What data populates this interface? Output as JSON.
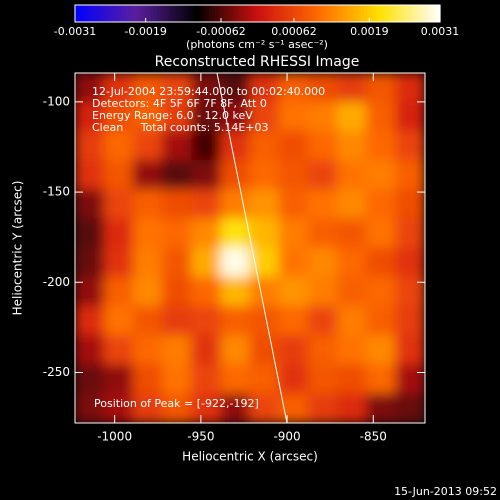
{
  "chart_data": {
    "type": "heatmap",
    "title": "Reconstructed RHESSI Image",
    "x_label": "Heliocentric X (arcsec)",
    "y_label": "Heliocentric Y (arcsec)",
    "xlim": [
      -1023,
      -820
    ],
    "ylim": [
      -278,
      -84
    ],
    "xticks": [
      -1000,
      -950,
      -900,
      -850
    ],
    "yticks": [
      -100,
      -150,
      -200,
      -250
    ],
    "colorbar_label": "(photons cm⁻² s⁻¹ asec⁻²)",
    "zlim": [
      -0.0031,
      0.0031
    ],
    "zticks": [
      -0.0031,
      -0.0019,
      -0.00062,
      0.00062,
      0.0019,
      0.0031
    ],
    "colormap": [
      "#0000ff",
      "#5a1f9e",
      "#000000",
      "#cc1010",
      "#ff6a00",
      "#ffe000",
      "#ffffff"
    ],
    "annotations": [
      "12-Jul-2004 23:59:44.000 to 00:02:40.000",
      "Detectors: 4F 5F 6F 7F 8F, Att 0",
      "Energy Range: 6.0 - 12.0 keV",
      "Clean     Total counts: 5.14E+03"
    ],
    "peak_label": "Position of Peak = [-922,-192]",
    "z": [
      [
        -0.0003,
        0.0004,
        0.0008,
        0.0006,
        -0.0004,
        -0.0006,
        0.0004,
        0.0009,
        0.0007,
        0.0005,
        0.0008,
        0.0003
      ],
      [
        0.0002,
        0.0007,
        0.0009,
        0.0005,
        -0.0005,
        -0.0003,
        0.0006,
        0.0011,
        0.0012,
        0.0016,
        0.0009,
        0.0002
      ],
      [
        0.0005,
        0.001,
        0.0006,
        -0.0002,
        -0.0007,
        0.0004,
        0.0009,
        0.0007,
        0.001,
        0.0013,
        0.001,
        0.0006
      ],
      [
        0.0004,
        0.0008,
        -0.0003,
        -0.0006,
        -0.0004,
        0.0007,
        0.001,
        0.0008,
        0.0006,
        0.0011,
        0.0012,
        0.0009
      ],
      [
        -0.0004,
        0.0006,
        0.0009,
        0.0007,
        0.0006,
        0.0012,
        0.0014,
        0.0009,
        0.0011,
        0.0013,
        0.001,
        0.0007
      ],
      [
        -0.0006,
        0.0003,
        0.0011,
        0.001,
        0.0013,
        0.0021,
        0.0017,
        0.0012,
        0.0009,
        0.0008,
        0.0011,
        0.0006
      ],
      [
        -0.0005,
        0.0004,
        0.0012,
        0.0008,
        0.0016,
        0.003,
        0.0019,
        0.0011,
        0.0013,
        0.001,
        0.0007,
        0.0004
      ],
      [
        -0.0003,
        0.0009,
        0.0013,
        0.0007,
        0.001,
        0.0017,
        0.0012,
        0.0014,
        0.0012,
        0.0009,
        0.001,
        0.0006
      ],
      [
        0.0003,
        0.0011,
        0.0008,
        0.0005,
        0.0006,
        0.0009,
        0.0008,
        0.001,
        0.0006,
        0.0012,
        0.0009,
        0.0005
      ],
      [
        -0.0002,
        0.0006,
        0.001,
        0.0012,
        0.0004,
        0.0013,
        0.0007,
        0.0005,
        0.0009,
        0.0011,
        0.0013,
        0.0004
      ],
      [
        -0.0005,
        -0.0003,
        0.0007,
        0.0011,
        0.0006,
        0.001,
        0.0009,
        0.0004,
        0.0008,
        0.0007,
        0.001,
        -0.0002
      ],
      [
        -0.0004,
        -0.0002,
        0.0005,
        0.0008,
        0.0004,
        -0.0003,
        0.0006,
        0.0009,
        0.0005,
        0.0003,
        -0.0004,
        -0.0005
      ]
    ]
  },
  "footer": "15-Jun-2013 09:52"
}
